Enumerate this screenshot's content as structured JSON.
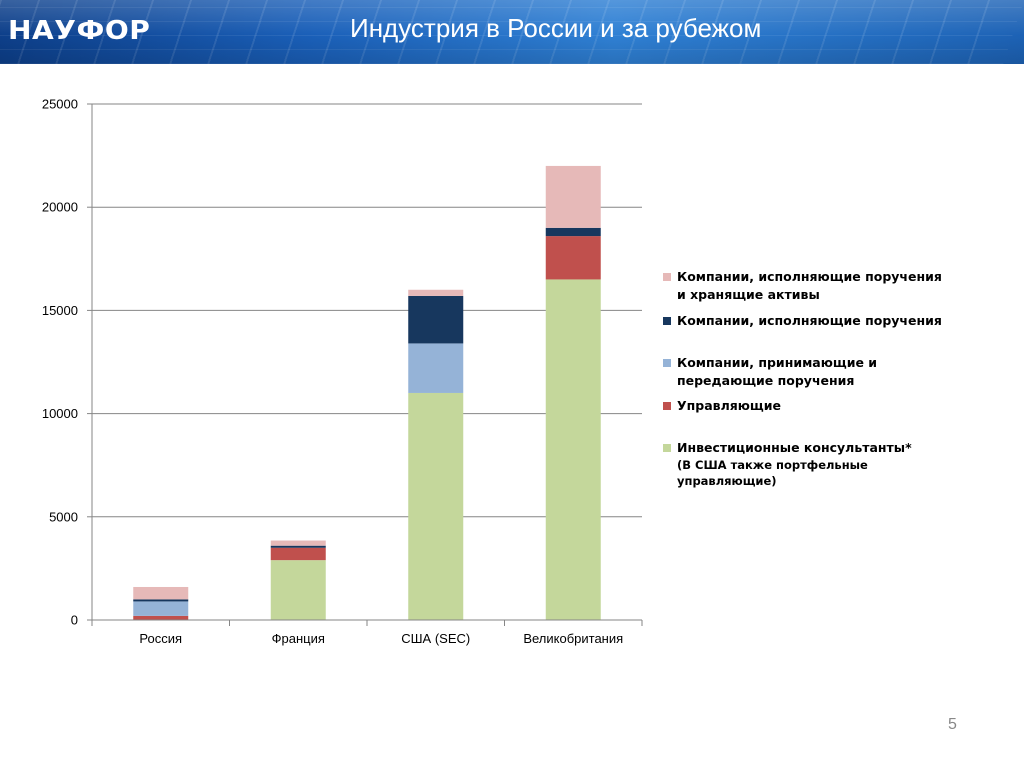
{
  "header": {
    "logo_text": "НАУФОР",
    "title": "Индустрия в России и за рубежом"
  },
  "page_number": "5",
  "colors": {
    "banner": "#1a5fb8",
    "consultants": "#c4d79b",
    "managers": "#c0504d",
    "receiving": "#95b3d7",
    "executing": "#17375e",
    "executing_holding": "#e6b9b8"
  },
  "chart_data": {
    "type": "bar",
    "stacked": true,
    "categories": [
      "Россия",
      "Франция",
      "США (SEC)",
      "Великобритания"
    ],
    "ylim": [
      0,
      25000
    ],
    "yticks": [
      0,
      5000,
      10000,
      15000,
      20000,
      25000
    ],
    "grid": true,
    "legend_position": "right",
    "series": [
      {
        "name": "Инвестиционные консультанты*",
        "color": "#c4d79b",
        "values": [
          0,
          2900,
          11000,
          16500
        ]
      },
      {
        "name": "Управляющие",
        "color": "#c0504d",
        "values": [
          200,
          600,
          0,
          2100
        ]
      },
      {
        "name": "Компании, принимающие и передающие поручения",
        "color": "#95b3d7",
        "values": [
          700,
          0,
          2400,
          0
        ]
      },
      {
        "name": "Компании, исполняющие поручения",
        "color": "#17375e",
        "values": [
          100,
          100,
          2300,
          400
        ]
      },
      {
        "name": "Компании, исполняющие поручения и хранящие активы",
        "color": "#e6b9b8",
        "values": [
          600,
          250,
          300,
          3000
        ]
      }
    ],
    "legend": [
      {
        "lines": [
          "Компании, исполняющие поручения",
          "и хранящие активы"
        ],
        "color": "#e6b9b8"
      },
      {
        "lines": [
          "Компании, исполняющие поручения"
        ],
        "color": "#17375e"
      },
      {
        "lines": [
          "Компании, принимающие и",
          "передающие поручения"
        ],
        "color": "#95b3d7"
      },
      {
        "lines": [
          "Управляющие"
        ],
        "color": "#c0504d"
      },
      {
        "lines": [
          "Инвестиционные консультанты*"
        ],
        "color": "#c4d79b",
        "note": [
          "(В США также портфельные",
          "управляющие)"
        ]
      }
    ]
  }
}
